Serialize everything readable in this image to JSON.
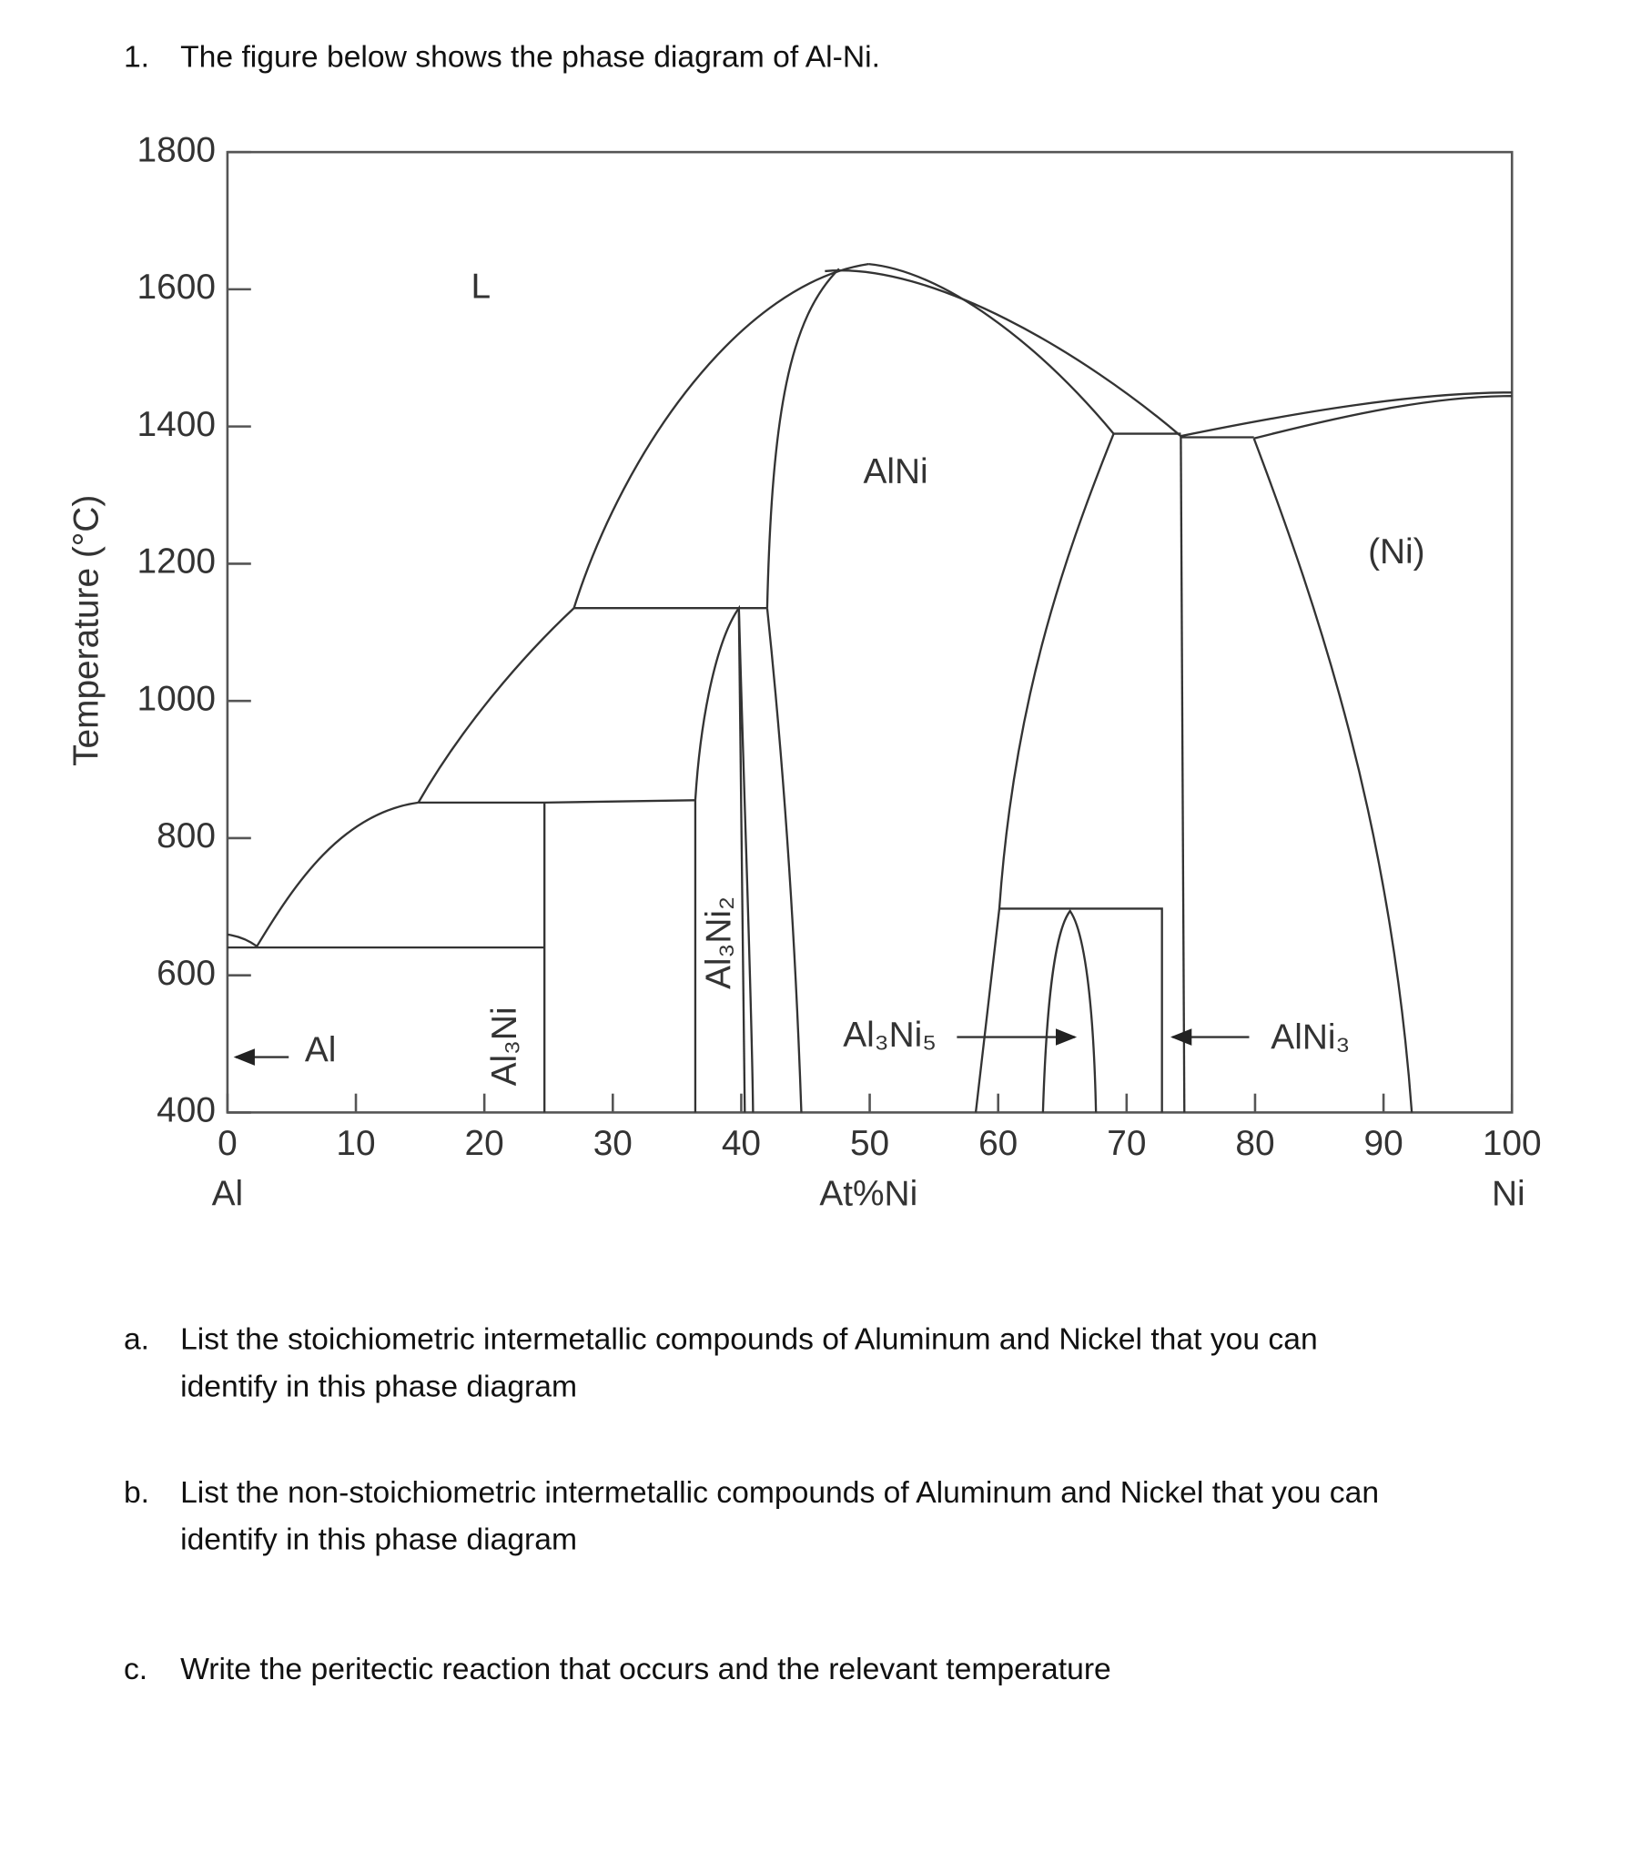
{
  "question": {
    "number": "1.",
    "text": "The figure below shows the phase diagram of Al-Ni."
  },
  "chart_data": {
    "type": "phase-diagram",
    "ylabel": "Temperature (°C)",
    "xlabel": "At%Ni",
    "x_end_labels": [
      "Al",
      "Ni"
    ],
    "xlim": [
      0,
      100
    ],
    "ylim": [
      400,
      1800
    ],
    "xticks": [
      0,
      10,
      20,
      30,
      40,
      50,
      60,
      70,
      80,
      90,
      100
    ],
    "yticks": [
      400,
      600,
      800,
      1000,
      1200,
      1400,
      1600,
      1800
    ],
    "region_labels": [
      "L",
      "AlNi",
      "(Ni)",
      "Al",
      "Al₃Ni",
      "Al₃Ni₂",
      "Al₃Ni₅",
      "AlNi₃"
    ]
  },
  "parts": [
    {
      "label": "a.",
      "lines": [
        "List the stoichiometric intermetallic compounds of Aluminum and Nickel that you can",
        "identify in this phase diagram"
      ]
    },
    {
      "label": "b.",
      "lines": [
        "List the non-stoichiometric intermetallic compounds of Aluminum and Nickel that you can",
        "identify in this phase diagram"
      ]
    },
    {
      "label": "c.",
      "lines": [
        "Write the peritectic reaction that occurs and the relevant temperature"
      ]
    }
  ]
}
